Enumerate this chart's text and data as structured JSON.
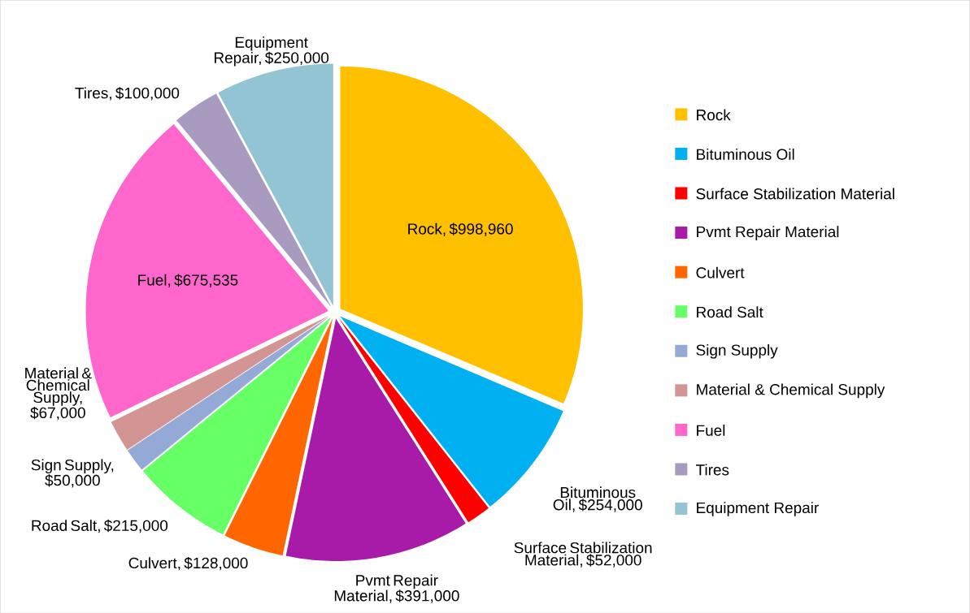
{
  "chart_data": {
    "type": "pie",
    "categories": [
      "Rock",
      "Bituminous Oil",
      "Surface Stabilization  Material",
      "Pvmt Repair Material",
      "Culvert",
      "Road Salt",
      "Sign Supply",
      "Material & Chemical  Supply",
      "Fuel",
      "Tires",
      "Equipment Repair"
    ],
    "values": [
      998960,
      254000,
      52000,
      391000,
      128000,
      215000,
      50000,
      67000,
      675535,
      100000,
      250000
    ],
    "colors": [
      "#ffc000",
      "#00b0f0",
      "#ff0000",
      "#a81ba8",
      "#ff6600",
      "#66ff66",
      "#95a9d6",
      "#d39594",
      "#ff66cc",
      "#a99bbf",
      "#92c4d4"
    ],
    "value_labels": [
      "Rock, $998,960",
      "Bituminous Oil, $254,000",
      "Surface Stabilization Material, $52,000",
      "Pvmt Repair Material, $391,000",
      "Culvert, $128,000",
      "Road Salt, $215,000",
      "Sign Supply, $50,000",
      "Material & Chemical Supply, $67,000",
      "Fuel, $675,535",
      "Tires, $100,000",
      "Equipment Repair, $250,000"
    ],
    "legend": "right"
  }
}
